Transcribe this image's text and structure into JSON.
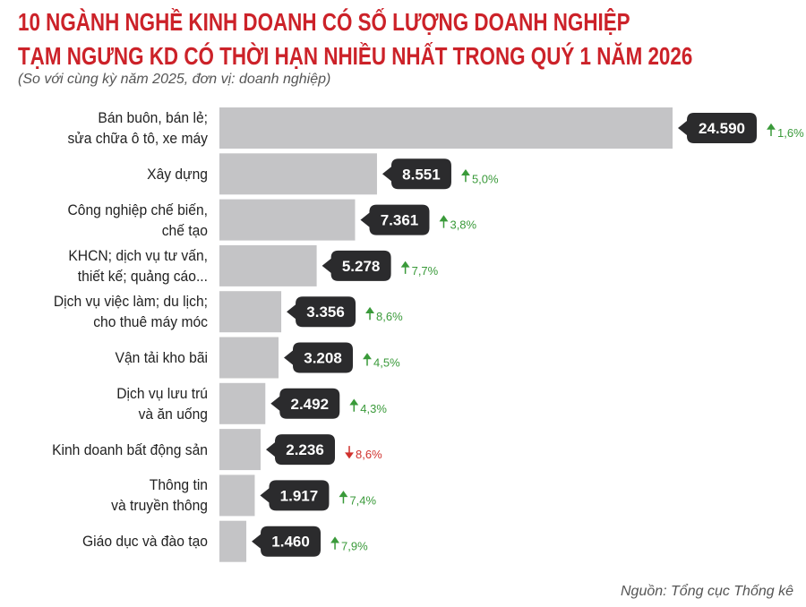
{
  "chart_data": {
    "type": "bar",
    "title": "10 NGÀNH NGHỀ KINH DOANH CÓ SỐ LƯỢNG DOANH NGHIỆP\nTẠM NGƯNG KD CÓ THỜI HẠN NHIỀU NHẤT TRONG QUÝ 1 NĂM 2026",
    "subtitle": "(So với cùng kỳ năm 2025, đơn vị: doanh nghiệp)",
    "categories": [
      "Bán buôn, bán lẻ;\nsửa chữa ô tô, xe máy",
      "Xây dựng",
      "Công nghiệp chế biến,\nchế tạo",
      "KHCN; dịch vụ tư vấn,\nthiết kế; quảng cáo...",
      "Dịch vụ việc làm; du lịch;\ncho thuê máy móc",
      "Vận tải kho bãi",
      "Dịch vụ lưu trú\nvà ăn uống",
      "Kinh doanh bất động sản",
      "Thông tin\nvà truyền thông",
      "Giáo dục và đào tạo"
    ],
    "values": [
      24590,
      8551,
      7361,
      5278,
      3356,
      3208,
      2492,
      2236,
      1917,
      1460
    ],
    "value_labels": [
      "24.590",
      "8.551",
      "7.361",
      "5.278",
      "3.356",
      "3.208",
      "2.492",
      "2.236",
      "1.917",
      "1.460"
    ],
    "change_values": [
      1.6,
      5.0,
      3.8,
      7.7,
      8.6,
      4.5,
      4.3,
      -8.6,
      7.4,
      7.9
    ],
    "change_labels": [
      "1,6%",
      "5,0%",
      "3,8%",
      "7,7%",
      "8,6%",
      "4,5%",
      "4,3%",
      "8,6%",
      "7,4%",
      "7,9%"
    ],
    "color": "#c4c4c6",
    "source": "Nguồn: Tổng cục Thống kê"
  }
}
